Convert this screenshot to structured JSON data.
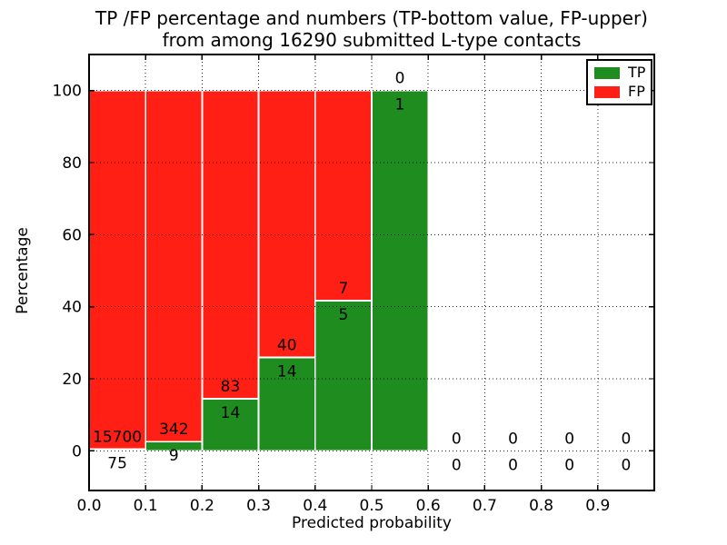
{
  "figure": {
    "title_line1": "TP /FP percentage and numbers (TP-bottom value, FP-upper)",
    "title_line2": "from among 16290 submitted L-type contacts"
  },
  "chart_data": {
    "type": "bar",
    "stacked": true,
    "title": "TP /FP percentage and numbers (TP-bottom value, FP-upper)\nfrom among 16290 submitted L-type contacts",
    "xlabel": "Predicted probability",
    "ylabel": "Percentage",
    "xlim": [
      0.0,
      1.0
    ],
    "ylim": [
      -11,
      110
    ],
    "x_tick_values": [
      0.0,
      0.1,
      0.2,
      0.3,
      0.4,
      0.5,
      0.6,
      0.7,
      0.8,
      0.9
    ],
    "x_tick_labels": [
      "0.0",
      "0.1",
      "0.2",
      "0.3",
      "0.4",
      "0.5",
      "0.6",
      "0.7",
      "0.8",
      "0.9"
    ],
    "y_tick_values": [
      0,
      20,
      40,
      60,
      80,
      100
    ],
    "y_tick_labels": [
      "0",
      "20",
      "40",
      "60",
      "80",
      "100"
    ],
    "grid": "dotted",
    "legend_position": "upper right",
    "total_contacts": 16290,
    "annotation_rule": "FP count printed above the TP/FP boundary, TP count printed below it",
    "legend": {
      "items": [
        {
          "label": "TP",
          "color": "#1e8c1e"
        },
        {
          "label": "FP",
          "color": "#ff1f15"
        }
      ]
    },
    "bins": [
      {
        "x_range": [
          0.0,
          0.1
        ],
        "tp_count": 75,
        "fp_count": 15700,
        "tp_pct": 0.48,
        "fp_pct": 99.52
      },
      {
        "x_range": [
          0.1,
          0.2
        ],
        "tp_count": 9,
        "fp_count": 342,
        "tp_pct": 2.56,
        "fp_pct": 97.44
      },
      {
        "x_range": [
          0.2,
          0.3
        ],
        "tp_count": 14,
        "fp_count": 83,
        "tp_pct": 14.43,
        "fp_pct": 85.57
      },
      {
        "x_range": [
          0.3,
          0.4
        ],
        "tp_count": 14,
        "fp_count": 40,
        "tp_pct": 25.93,
        "fp_pct": 74.07
      },
      {
        "x_range": [
          0.4,
          0.5
        ],
        "tp_count": 5,
        "fp_count": 7,
        "tp_pct": 41.67,
        "fp_pct": 58.33
      },
      {
        "x_range": [
          0.5,
          0.6
        ],
        "tp_count": 1,
        "fp_count": 0,
        "tp_pct": 100.0,
        "fp_pct": 0.0
      },
      {
        "x_range": [
          0.6,
          0.7
        ],
        "tp_count": 0,
        "fp_count": 0,
        "tp_pct": 0,
        "fp_pct": 0
      },
      {
        "x_range": [
          0.7,
          0.8
        ],
        "tp_count": 0,
        "fp_count": 0,
        "tp_pct": 0,
        "fp_pct": 0
      },
      {
        "x_range": [
          0.8,
          0.9
        ],
        "tp_count": 0,
        "fp_count": 0,
        "tp_pct": 0,
        "fp_pct": 0
      },
      {
        "x_range": [
          0.9,
          1.0
        ],
        "tp_count": 0,
        "fp_count": 0,
        "tp_pct": 0,
        "fp_pct": 0
      }
    ],
    "colors": {
      "tp": "#1e8c1e",
      "fp": "#ff1f15",
      "bar_edge": "#ffffff",
      "grid": "#000000",
      "spine": "#000000",
      "text": "#000000",
      "background": "#ffffff"
    }
  }
}
